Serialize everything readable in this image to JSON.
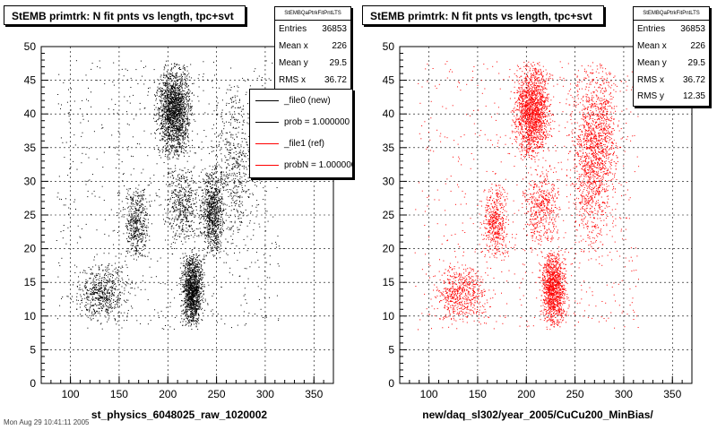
{
  "chart_data": [
    {
      "type": "scatter",
      "title": "StEMB primtrk: N fit pnts vs length, tpc+svt",
      "xlabel": "st_physics_6048025_raw_1020002",
      "ylabel": "",
      "xlim": [
        70,
        370
      ],
      "ylim": [
        0,
        50
      ],
      "xticks": [
        100,
        150,
        200,
        250,
        300,
        350
      ],
      "yticks": [
        0,
        5,
        10,
        15,
        20,
        25,
        30,
        35,
        40,
        45,
        50
      ],
      "grid": true,
      "color": "#000000",
      "stats": {
        "name": "StEMBQaPtrkFitPntLTS",
        "rows": [
          {
            "label": "Entries",
            "value": "36853"
          },
          {
            "label": "Mean x",
            "value": "226"
          },
          {
            "label": "Mean y",
            "value": "29.5"
          },
          {
            "label": "RMS x",
            "value": "36.72"
          }
        ]
      },
      "legend": {
        "placement": "right",
        "entries": [
          {
            "label": "_file0 (new)",
            "color": "#000000"
          },
          {
            "label": "prob = 1.000000",
            "color": "#000000"
          },
          {
            "label": "_file1 (ref)",
            "color": "#ff0000"
          },
          {
            "label": "probN = 1.000000",
            "color": "#ff0000"
          }
        ]
      },
      "clusters": [
        {
          "x": [
            182,
            230
          ],
          "y": [
            33,
            48
          ],
          "weight": 0.3
        },
        {
          "x": [
            210,
            240
          ],
          "y": [
            8,
            20
          ],
          "weight": 0.22
        },
        {
          "x": [
            230,
            262
          ],
          "y": [
            18,
            33
          ],
          "weight": 0.14
        },
        {
          "x": [
            95,
            170
          ],
          "y": [
            9,
            18
          ],
          "weight": 0.1
        },
        {
          "x": [
            150,
            185
          ],
          "y": [
            18,
            30
          ],
          "weight": 0.08
        },
        {
          "x": [
            240,
            300
          ],
          "y": [
            20,
            45
          ],
          "weight": 0.08
        },
        {
          "x": [
            190,
            240
          ],
          "y": [
            20,
            33
          ],
          "weight": 0.08
        }
      ]
    },
    {
      "type": "scatter",
      "title": "StEMB primtrk: N fit pnts vs length, tpc+svt",
      "xlabel": "new/daq_sl302/year_2005/CuCu200_MinBias/",
      "ylabel": "",
      "xlim": [
        70,
        370
      ],
      "ylim": [
        0,
        50
      ],
      "xticks": [
        100,
        150,
        200,
        250,
        300,
        350
      ],
      "yticks": [
        0,
        5,
        10,
        15,
        20,
        25,
        30,
        35,
        40,
        45,
        50
      ],
      "grid": true,
      "color": "#ff0000",
      "stats": {
        "name": "StEMBQaPtrkFitPntLTS",
        "rows": [
          {
            "label": "Entries",
            "value": "36853"
          },
          {
            "label": "Mean x",
            "value": "226"
          },
          {
            "label": "Mean y",
            "value": "29.5"
          },
          {
            "label": "RMS x",
            "value": "36.72"
          },
          {
            "label": "RMS y",
            "value": "12.35"
          }
        ]
      },
      "clusters": [
        {
          "x": [
            182,
            230
          ],
          "y": [
            33,
            48
          ],
          "weight": 0.28
        },
        {
          "x": [
            210,
            245
          ],
          "y": [
            8,
            20
          ],
          "weight": 0.2
        },
        {
          "x": [
            240,
            290
          ],
          "y": [
            18,
            48
          ],
          "weight": 0.18
        },
        {
          "x": [
            95,
            170
          ],
          "y": [
            9,
            18
          ],
          "weight": 0.1
        },
        {
          "x": [
            150,
            185
          ],
          "y": [
            18,
            30
          ],
          "weight": 0.08
        },
        {
          "x": [
            190,
            240
          ],
          "y": [
            20,
            33
          ],
          "weight": 0.08
        },
        {
          "x": [
            260,
            300
          ],
          "y": [
            25,
            48
          ],
          "weight": 0.08
        }
      ]
    }
  ],
  "footer": "Mon Aug 29 10:41:11 2005"
}
